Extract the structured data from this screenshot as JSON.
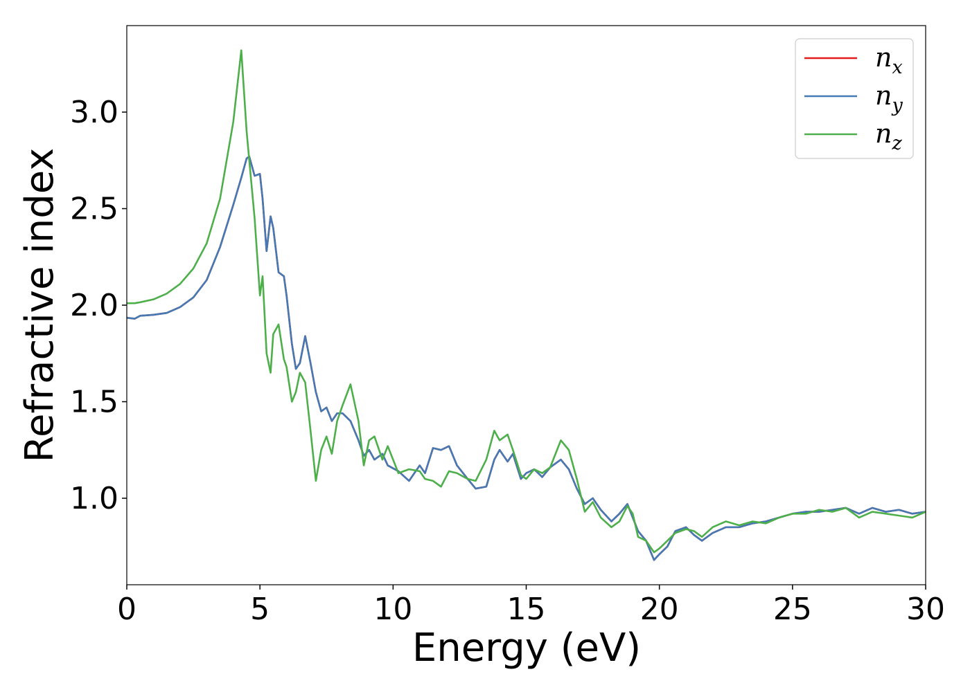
{
  "chart_data": {
    "type": "line",
    "xlabel": "Energy (eV)",
    "ylabel": "Refractive index",
    "x": [
      0,
      0.3,
      0.5,
      1,
      1.5,
      2,
      2.5,
      3,
      3.5,
      4,
      4.3,
      4.5,
      4.6,
      4.8,
      5.0,
      5.1,
      5.25,
      5.4,
      5.5,
      5.7,
      5.9,
      6.0,
      6.2,
      6.35,
      6.5,
      6.7,
      6.9,
      7.1,
      7.3,
      7.5,
      7.7,
      7.9,
      8.1,
      8.4,
      8.7,
      8.9,
      9.1,
      9.3,
      9.6,
      9.8,
      10.2,
      10.6,
      11.0,
      11.2,
      11.5,
      11.8,
      12.1,
      12.4,
      12.8,
      13.1,
      13.5,
      13.8,
      14.0,
      14.3,
      14.5,
      14.8,
      15.0,
      15.3,
      15.6,
      15.9,
      16.3,
      16.6,
      16.9,
      17.2,
      17.5,
      17.8,
      18.2,
      18.5,
      18.8,
      19.0,
      19.2,
      19.5,
      19.8,
      20.0,
      20.3,
      20.6,
      21.0,
      21.3,
      21.6,
      22.0,
      22.5,
      23,
      23.5,
      24,
      24.5,
      25,
      25.5,
      26,
      26.5,
      27,
      27.5,
      28,
      28.5,
      29,
      29.5,
      30
    ],
    "series": [
      {
        "name": "n",
        "subscript": "x",
        "color": "#e41a1c",
        "values": [
          1.935,
          1.93,
          1.945,
          1.95,
          1.96,
          1.99,
          2.04,
          2.13,
          2.3,
          2.52,
          2.66,
          2.76,
          2.77,
          2.67,
          2.68,
          2.55,
          2.28,
          2.46,
          2.4,
          2.17,
          2.15,
          2.05,
          1.8,
          1.67,
          1.7,
          1.84,
          1.7,
          1.55,
          1.45,
          1.47,
          1.4,
          1.44,
          1.44,
          1.4,
          1.3,
          1.22,
          1.25,
          1.2,
          1.23,
          1.17,
          1.14,
          1.09,
          1.17,
          1.13,
          1.26,
          1.25,
          1.27,
          1.17,
          1.1,
          1.05,
          1.06,
          1.2,
          1.25,
          1.19,
          1.23,
          1.1,
          1.13,
          1.15,
          1.11,
          1.16,
          1.2,
          1.15,
          1.05,
          0.97,
          1.0,
          0.94,
          0.88,
          0.92,
          0.97,
          0.9,
          0.83,
          0.78,
          0.68,
          0.71,
          0.75,
          0.83,
          0.85,
          0.81,
          0.78,
          0.82,
          0.85,
          0.85,
          0.87,
          0.88,
          0.9,
          0.92,
          0.93,
          0.93,
          0.94,
          0.95,
          0.92,
          0.95,
          0.93,
          0.94,
          0.92,
          0.93
        ]
      },
      {
        "name": "n",
        "subscript": "y",
        "color": "#4479b4",
        "values": [
          1.935,
          1.93,
          1.945,
          1.95,
          1.96,
          1.99,
          2.04,
          2.13,
          2.3,
          2.52,
          2.66,
          2.76,
          2.77,
          2.67,
          2.68,
          2.55,
          2.28,
          2.46,
          2.4,
          2.17,
          2.15,
          2.05,
          1.8,
          1.67,
          1.7,
          1.84,
          1.7,
          1.55,
          1.45,
          1.47,
          1.4,
          1.44,
          1.44,
          1.4,
          1.3,
          1.22,
          1.25,
          1.2,
          1.23,
          1.17,
          1.14,
          1.09,
          1.17,
          1.13,
          1.26,
          1.25,
          1.27,
          1.17,
          1.1,
          1.05,
          1.06,
          1.2,
          1.25,
          1.19,
          1.23,
          1.1,
          1.13,
          1.15,
          1.11,
          1.16,
          1.2,
          1.15,
          1.05,
          0.97,
          1.0,
          0.94,
          0.88,
          0.92,
          0.97,
          0.9,
          0.83,
          0.78,
          0.68,
          0.71,
          0.75,
          0.83,
          0.85,
          0.81,
          0.78,
          0.82,
          0.85,
          0.85,
          0.87,
          0.88,
          0.9,
          0.92,
          0.93,
          0.93,
          0.94,
          0.95,
          0.92,
          0.95,
          0.93,
          0.94,
          0.92,
          0.93
        ]
      },
      {
        "name": "n",
        "subscript": "z",
        "color": "#4daf4a",
        "values": [
          2.01,
          2.01,
          2.015,
          2.03,
          2.06,
          2.11,
          2.19,
          2.32,
          2.55,
          2.95,
          3.32,
          2.9,
          2.75,
          2.45,
          2.05,
          2.15,
          1.75,
          1.65,
          1.85,
          1.9,
          1.72,
          1.68,
          1.5,
          1.55,
          1.65,
          1.6,
          1.35,
          1.09,
          1.25,
          1.32,
          1.23,
          1.4,
          1.48,
          1.59,
          1.4,
          1.17,
          1.3,
          1.32,
          1.2,
          1.27,
          1.13,
          1.15,
          1.14,
          1.1,
          1.09,
          1.06,
          1.14,
          1.13,
          1.1,
          1.09,
          1.2,
          1.35,
          1.3,
          1.33,
          1.25,
          1.12,
          1.1,
          1.15,
          1.13,
          1.16,
          1.3,
          1.25,
          1.1,
          0.93,
          0.98,
          0.9,
          0.85,
          0.88,
          0.96,
          0.92,
          0.8,
          0.78,
          0.72,
          0.74,
          0.78,
          0.82,
          0.84,
          0.83,
          0.8,
          0.85,
          0.88,
          0.86,
          0.88,
          0.87,
          0.9,
          0.92,
          0.92,
          0.94,
          0.93,
          0.95,
          0.9,
          0.93,
          0.92,
          0.91,
          0.9,
          0.93
        ]
      }
    ],
    "xlim": [
      0,
      30
    ],
    "xticks": [
      0,
      5,
      10,
      15,
      20,
      25,
      30
    ],
    "ylim": [
      0.552,
      3.448
    ],
    "yticks": [
      {
        "value": 1.0,
        "label": "1.0"
      },
      {
        "value": 1.5,
        "label": "1.5"
      },
      {
        "value": 2.0,
        "label": "2.0"
      },
      {
        "value": 2.5,
        "label": "2.5"
      },
      {
        "value": 3.0,
        "label": "3.0"
      }
    ],
    "grid": false,
    "legend": "upper right"
  }
}
